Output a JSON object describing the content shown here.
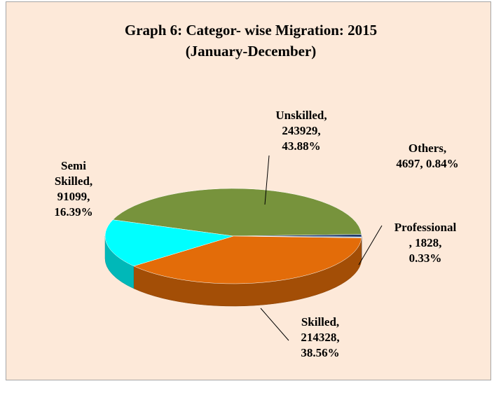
{
  "chart_data": {
    "type": "pie3d",
    "title": "Graph 6: Categor- wise  Migration: 2015",
    "subtitle": "(January-December)",
    "categories": [
      "Unskilled",
      "Others",
      "Professional",
      "Skilled",
      "Semi Skilled"
    ],
    "values": [
      243929,
      4697,
      1828,
      214328,
      91099
    ],
    "value_labels": [
      [
        "Unskilled,",
        "243929,",
        "43.88%"
      ],
      [
        "Others,",
        "4697, 0.84%"
      ],
      [
        "Professional",
        ", 1828,",
        "0.33%"
      ],
      [
        "Skilled,",
        "214328,",
        "38.56%"
      ],
      [
        "Semi",
        "Skilled,",
        "91099,",
        "16.39%"
      ]
    ],
    "colors": [
      "#77933c",
      "#1f3a6e",
      "#8db3e2",
      "#e36c09",
      "#00ffff"
    ]
  }
}
